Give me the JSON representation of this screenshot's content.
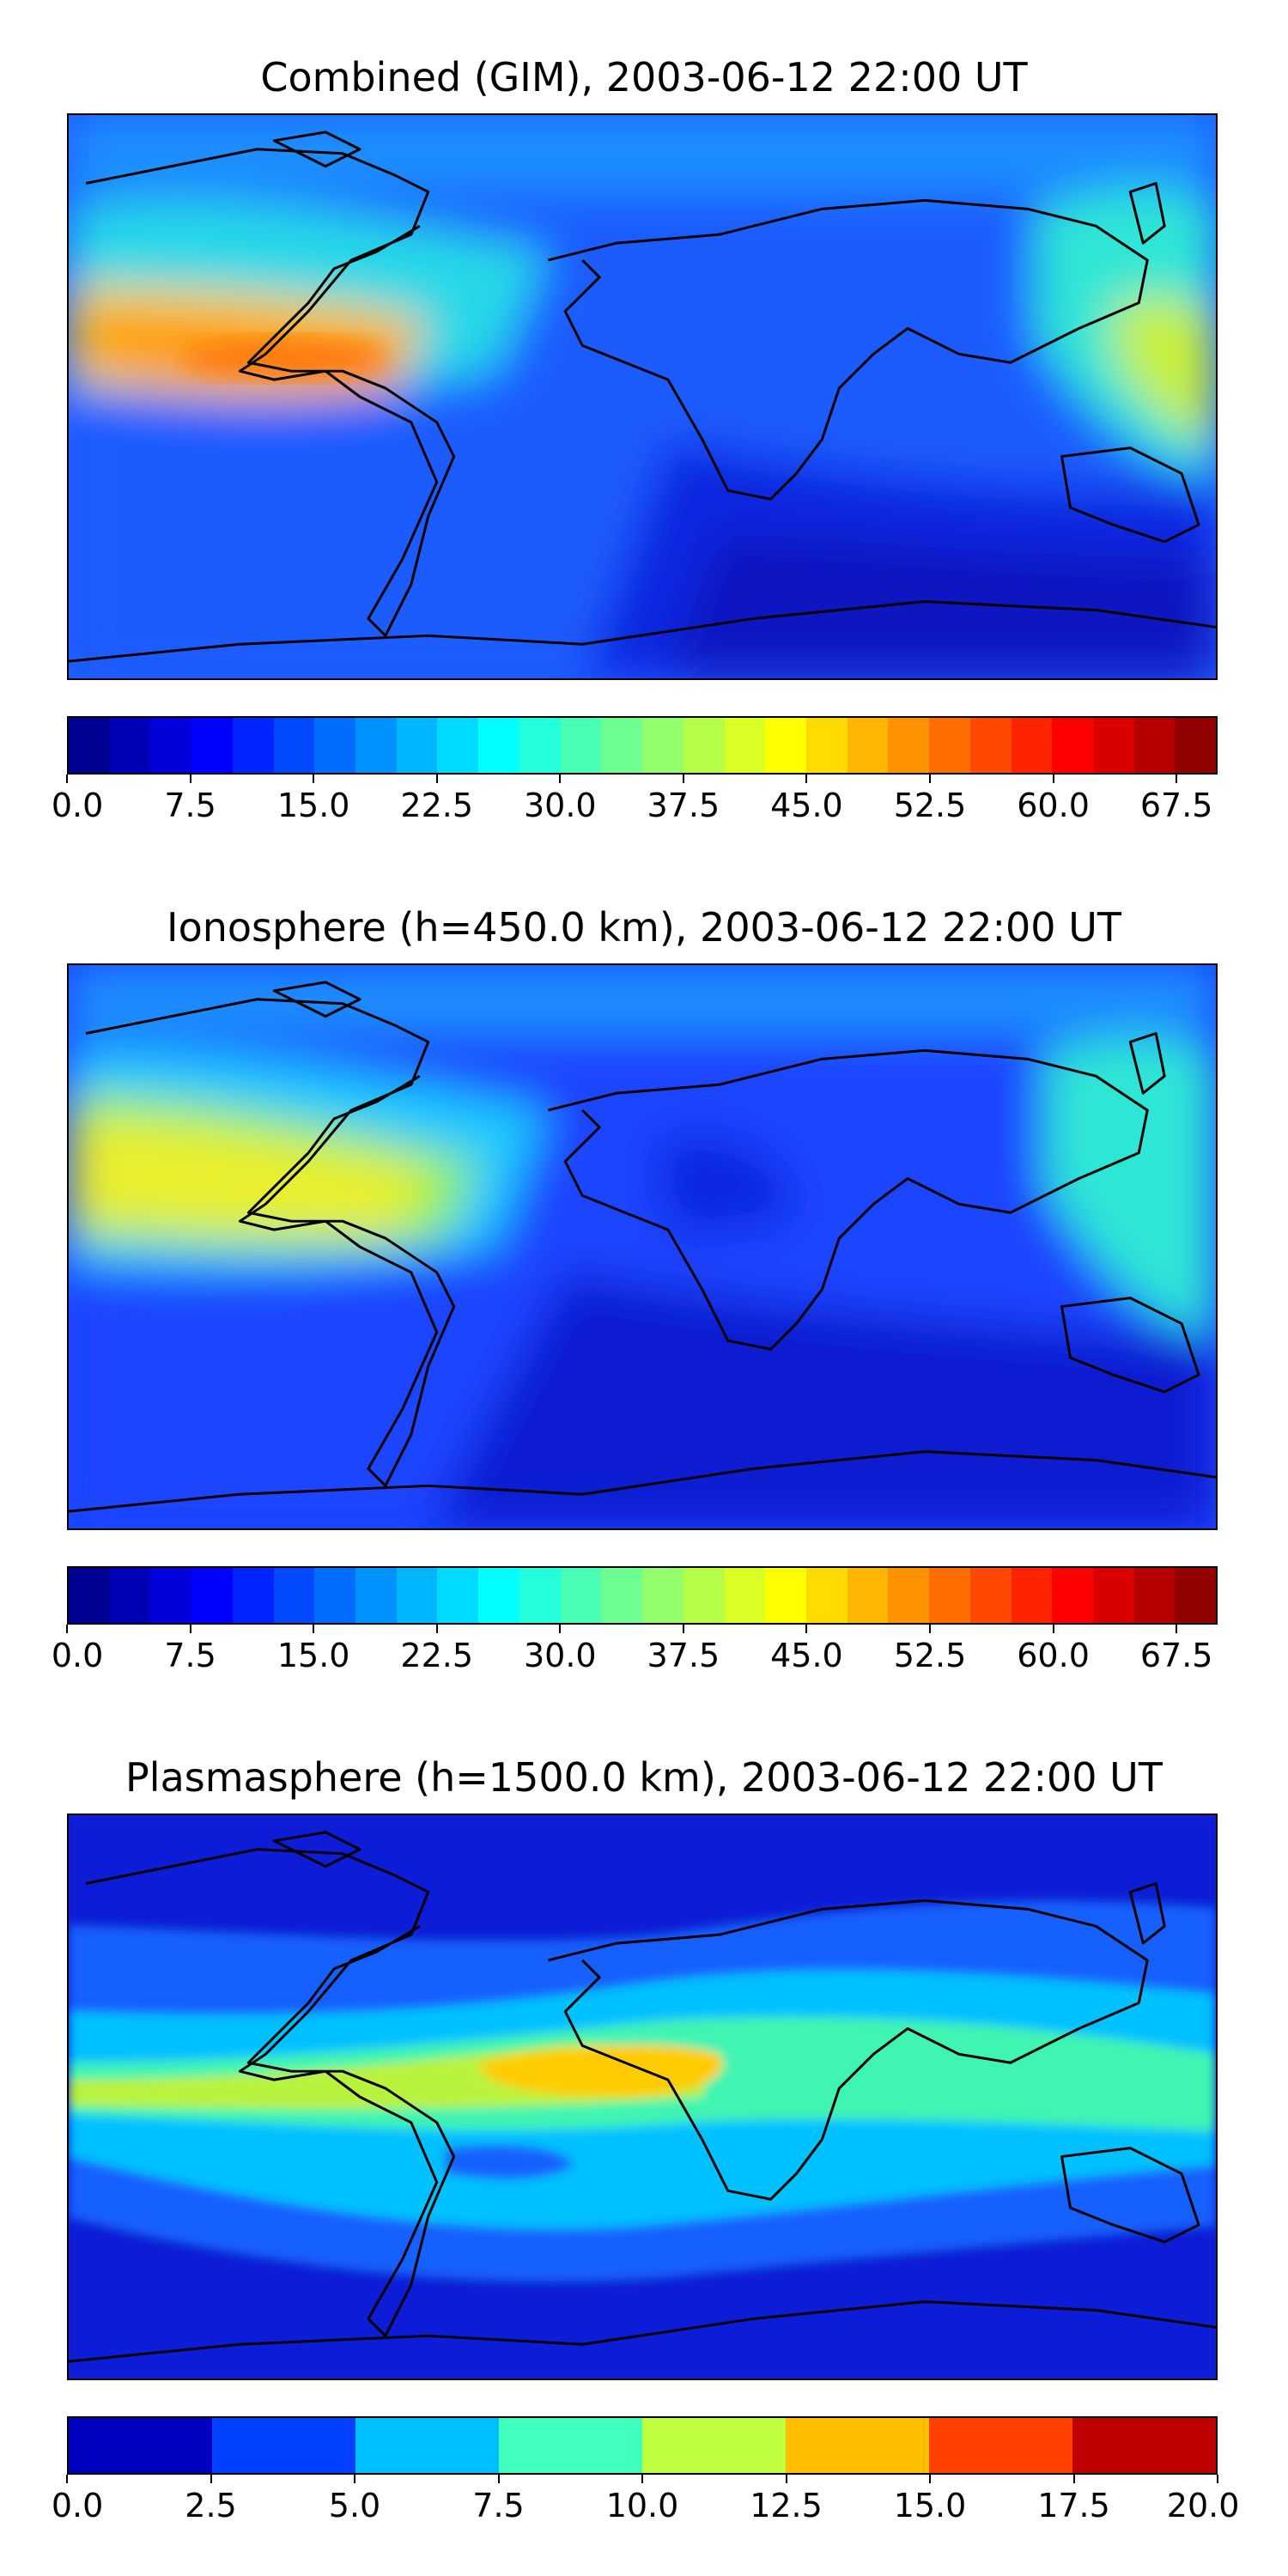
{
  "panels": [
    {
      "title": "Combined (GIM), 2003-06-12 22:00 UT",
      "colorbar": {
        "min": 0,
        "max": 70,
        "levels": 28,
        "tick_labels": [
          "0.0",
          "7.5",
          "15.0",
          "22.5",
          "30.0",
          "37.5",
          "45.0",
          "52.5",
          "60.0",
          "67.5"
        ],
        "tick_values": [
          0,
          7.5,
          15,
          22.5,
          30,
          37.5,
          45,
          52.5,
          60,
          67.5
        ]
      }
    },
    {
      "title": "Ionosphere  (h=450.0 km), 2003-06-12 22:00 UT",
      "colorbar": {
        "min": 0,
        "max": 70,
        "levels": 28,
        "tick_labels": [
          "0.0",
          "7.5",
          "15.0",
          "22.5",
          "30.0",
          "37.5",
          "45.0",
          "52.5",
          "60.0",
          "67.5"
        ],
        "tick_values": [
          0,
          7.5,
          15,
          22.5,
          30,
          37.5,
          45,
          52.5,
          60,
          67.5
        ]
      }
    },
    {
      "title": "Plasmasphere (h=1500.0 km), 2003-06-12 22:00 UT",
      "colorbar": {
        "min": 0,
        "max": 20,
        "levels": 8,
        "tick_labels": [
          "0.0",
          "2.5",
          "5.0",
          "7.5",
          "10.0",
          "12.5",
          "15.0",
          "17.5",
          "20.0"
        ],
        "tick_values": [
          0,
          2.5,
          5,
          7.5,
          10,
          12.5,
          15,
          17.5,
          20
        ]
      }
    }
  ],
  "colormap": "jet",
  "coastline_color": "#000000"
}
